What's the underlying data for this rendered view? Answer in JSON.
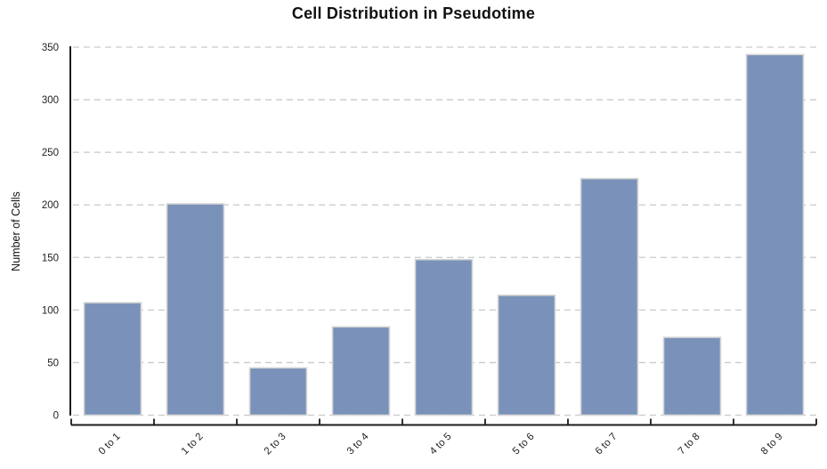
{
  "chart_data": {
    "type": "bar",
    "title": "Cell Distribution in Pseudotime",
    "ylabel": "Number of Cells",
    "xlabel": "",
    "categories": [
      "0 to 1",
      "1 to 2",
      "2 to 3",
      "3 to 4",
      "4 to 5",
      "5 to 6",
      "6 to 7",
      "7 to 8",
      "8 to 9"
    ],
    "values": [
      107,
      201,
      45,
      84,
      148,
      114,
      225,
      74,
      343
    ],
    "yticks": [
      0,
      50,
      100,
      150,
      200,
      250,
      300,
      350
    ],
    "ylim": [
      0,
      350
    ],
    "grid": "horizontal-dashed",
    "legend": "none",
    "x_tick_rotation_deg": 45,
    "colors": {
      "bar_fill": "#7a92b9",
      "bar_edge": "#d6d6d6",
      "gridline": "#c9c9c9",
      "axis": "#1b1b1b",
      "tick_text": "#1f1f1f",
      "title_text": "#111111",
      "background": "#ffffff"
    }
  }
}
